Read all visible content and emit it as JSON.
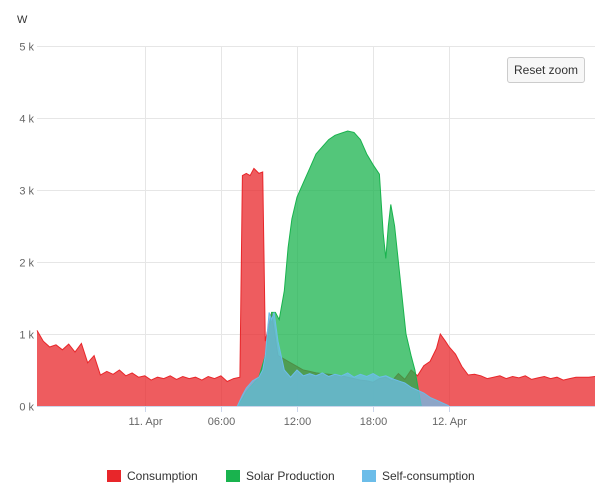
{
  "controls": {
    "reset_zoom_label": "Reset zoom"
  },
  "chart_data": {
    "type": "area",
    "unit_label": "W",
    "ylabel": "W",
    "xlabel": "",
    "title": "",
    "ylim": [
      0,
      5000
    ],
    "x_range_hours": [
      -8.5,
      35.5
    ],
    "y_ticks": [
      {
        "value": 0,
        "label": "0 k"
      },
      {
        "value": 1000,
        "label": "1 k"
      },
      {
        "value": 2000,
        "label": "2 k"
      },
      {
        "value": 3000,
        "label": "3 k"
      },
      {
        "value": 4000,
        "label": "4 k"
      },
      {
        "value": 5000,
        "label": "5 k"
      }
    ],
    "x_ticks": [
      {
        "hour": 0,
        "label": "11. Apr"
      },
      {
        "hour": 6,
        "label": "06:00"
      },
      {
        "hour": 12,
        "label": "12:00"
      },
      {
        "hour": 18,
        "label": "18:00"
      },
      {
        "hour": 24,
        "label": "12. Apr"
      }
    ],
    "grid": true,
    "legend_position": "bottom",
    "series": [
      {
        "name": "Consumption",
        "color": "#e8262a",
        "points": [
          [
            -8.5,
            1050
          ],
          [
            -8,
            900
          ],
          [
            -7.5,
            820
          ],
          [
            -7,
            850
          ],
          [
            -6.5,
            780
          ],
          [
            -6,
            860
          ],
          [
            -5.5,
            750
          ],
          [
            -5,
            870
          ],
          [
            -4.5,
            600
          ],
          [
            -4,
            700
          ],
          [
            -3.5,
            430
          ],
          [
            -3,
            480
          ],
          [
            -2.5,
            440
          ],
          [
            -2,
            500
          ],
          [
            -1.5,
            420
          ],
          [
            -1,
            460
          ],
          [
            -0.5,
            400
          ],
          [
            0,
            420
          ],
          [
            0.5,
            360
          ],
          [
            1,
            400
          ],
          [
            1.5,
            380
          ],
          [
            2,
            420
          ],
          [
            2.5,
            370
          ],
          [
            3,
            410
          ],
          [
            3.5,
            380
          ],
          [
            4,
            400
          ],
          [
            4.5,
            360
          ],
          [
            5,
            410
          ],
          [
            5.5,
            380
          ],
          [
            6,
            420
          ],
          [
            6.5,
            340
          ],
          [
            7,
            380
          ],
          [
            7.5,
            400
          ],
          [
            7.7,
            3200
          ],
          [
            8,
            3230
          ],
          [
            8.3,
            3200
          ],
          [
            8.6,
            3300
          ],
          [
            9,
            3230
          ],
          [
            9.3,
            3250
          ],
          [
            9.5,
            900
          ],
          [
            10,
            1300
          ],
          [
            10.5,
            700
          ],
          [
            11,
            650
          ],
          [
            11.5,
            600
          ],
          [
            12,
            550
          ],
          [
            12.5,
            500
          ],
          [
            13,
            480
          ],
          [
            13.5,
            460
          ],
          [
            14,
            450
          ],
          [
            14.5,
            440
          ],
          [
            15,
            430
          ],
          [
            15.5,
            420
          ],
          [
            16,
            400
          ],
          [
            16.5,
            380
          ],
          [
            17,
            360
          ],
          [
            17.5,
            350
          ],
          [
            18,
            330
          ],
          [
            18.5,
            380
          ],
          [
            19,
            400
          ],
          [
            19.5,
            350
          ],
          [
            20,
            450
          ],
          [
            20.5,
            370
          ],
          [
            21,
            500
          ],
          [
            21.5,
            420
          ],
          [
            22,
            560
          ],
          [
            22.5,
            620
          ],
          [
            23,
            800
          ],
          [
            23.3,
            1000
          ],
          [
            23.7,
            900
          ],
          [
            24,
            820
          ],
          [
            24.5,
            720
          ],
          [
            25,
            550
          ],
          [
            25.5,
            430
          ],
          [
            26,
            440
          ],
          [
            26.5,
            420
          ],
          [
            27,
            380
          ],
          [
            27.5,
            400
          ],
          [
            28,
            420
          ],
          [
            28.5,
            380
          ],
          [
            29,
            410
          ],
          [
            29.5,
            390
          ],
          [
            30,
            420
          ],
          [
            30.5,
            370
          ],
          [
            31,
            390
          ],
          [
            31.5,
            410
          ],
          [
            32,
            380
          ],
          [
            32.5,
            400
          ],
          [
            33,
            360
          ],
          [
            33.5,
            380
          ],
          [
            34,
            400
          ],
          [
            35,
            400
          ],
          [
            35.5,
            410
          ]
        ]
      },
      {
        "name": "Solar Production",
        "color": "#19b34e",
        "points": [
          [
            7.3,
            0
          ],
          [
            7.7,
            100
          ],
          [
            8,
            200
          ],
          [
            8.5,
            300
          ],
          [
            9,
            400
          ],
          [
            9.5,
            700
          ],
          [
            10,
            1300
          ],
          [
            10.3,
            1300
          ],
          [
            10.6,
            1200
          ],
          [
            11,
            1600
          ],
          [
            11.3,
            2200
          ],
          [
            11.6,
            2600
          ],
          [
            12,
            2900
          ],
          [
            12.5,
            3100
          ],
          [
            13,
            3300
          ],
          [
            13.5,
            3500
          ],
          [
            14,
            3600
          ],
          [
            14.5,
            3700
          ],
          [
            15,
            3760
          ],
          [
            15.5,
            3790
          ],
          [
            16,
            3820
          ],
          [
            16.5,
            3800
          ],
          [
            17,
            3700
          ],
          [
            17.5,
            3500
          ],
          [
            18,
            3350
          ],
          [
            18.5,
            3220
          ],
          [
            18.8,
            2400
          ],
          [
            19,
            2050
          ],
          [
            19.2,
            2500
          ],
          [
            19.4,
            2800
          ],
          [
            19.7,
            2500
          ],
          [
            20,
            2000
          ],
          [
            20.3,
            1500
          ],
          [
            20.6,
            1000
          ],
          [
            21,
            700
          ],
          [
            21.3,
            500
          ],
          [
            21.6,
            200
          ],
          [
            21.8,
            0
          ]
        ]
      },
      {
        "name": "Self-consumption",
        "color": "#6cbde9",
        "points": [
          [
            7.3,
            0
          ],
          [
            7.7,
            150
          ],
          [
            8,
            250
          ],
          [
            8.5,
            350
          ],
          [
            9,
            400
          ],
          [
            9.3,
            500
          ],
          [
            9.5,
            700
          ],
          [
            9.8,
            1300
          ],
          [
            10,
            1200
          ],
          [
            10.2,
            1300
          ],
          [
            10.5,
            900
          ],
          [
            11,
            500
          ],
          [
            11.5,
            400
          ],
          [
            12,
            500
          ],
          [
            12.5,
            420
          ],
          [
            13,
            450
          ],
          [
            13.5,
            420
          ],
          [
            14,
            460
          ],
          [
            14.5,
            410
          ],
          [
            15,
            440
          ],
          [
            15.5,
            420
          ],
          [
            16,
            460
          ],
          [
            16.5,
            400
          ],
          [
            17,
            440
          ],
          [
            17.5,
            410
          ],
          [
            18,
            450
          ],
          [
            18.5,
            400
          ],
          [
            19,
            420
          ],
          [
            19.5,
            380
          ],
          [
            20,
            350
          ],
          [
            20.5,
            320
          ],
          [
            21,
            260
          ],
          [
            21.5,
            220
          ],
          [
            22,
            180
          ],
          [
            22.5,
            120
          ],
          [
            23,
            80
          ],
          [
            23.5,
            40
          ],
          [
            24,
            0
          ]
        ]
      }
    ]
  }
}
